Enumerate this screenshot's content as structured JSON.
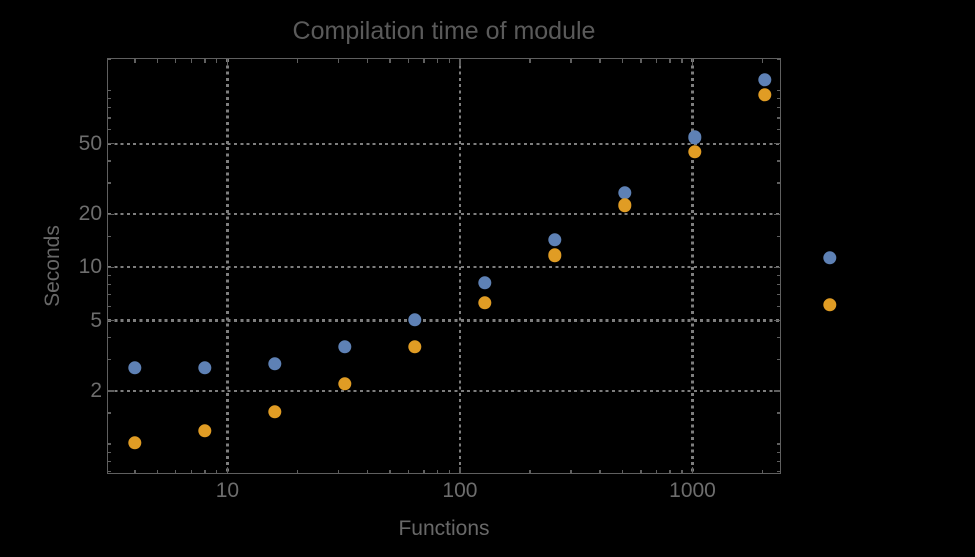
{
  "chart_data": {
    "type": "scatter",
    "title": "Compilation time of module",
    "xlabel": "Functions",
    "ylabel": "Seconds",
    "x_scale": "log",
    "y_scale": "log",
    "x_range": [
      3.05,
      2390
    ],
    "y_range": [
      0.68,
      151
    ],
    "grid": true,
    "grid_style": "dotted gray at major ticks",
    "x": [
      4,
      8,
      16,
      32,
      64,
      128,
      256,
      512,
      1024,
      2048
    ],
    "series": [
      {
        "name": "blue",
        "color": "#5e81b5",
        "values": [
          2.7,
          2.7,
          2.85,
          3.55,
          5.05,
          8.2,
          14.3,
          26.4,
          54.5,
          115
        ]
      },
      {
        "name": "orange",
        "color": "#e09c24",
        "values": [
          1.02,
          1.19,
          1.52,
          2.2,
          3.55,
          6.3,
          11.7,
          22.4,
          45.2,
          94.5
        ]
      }
    ],
    "x_ticks": {
      "major": [
        10,
        100,
        1000
      ],
      "labels": [
        "10",
        "100",
        "1000"
      ],
      "minor": [
        4,
        5,
        6,
        7,
        8,
        9,
        20,
        30,
        40,
        50,
        60,
        70,
        80,
        90,
        200,
        300,
        400,
        500,
        600,
        700,
        800,
        900,
        2000
      ]
    },
    "y_ticks": {
      "major": [
        2,
        5,
        10,
        20,
        50
      ],
      "labels": [
        "2",
        "5",
        "10",
        "20",
        "50"
      ],
      "minor": [
        0.7,
        0.8,
        0.9,
        1,
        1.5,
        3,
        4,
        6,
        7,
        8,
        9,
        15,
        30,
        40,
        60,
        70,
        80,
        90,
        100,
        150
      ]
    },
    "legend": {
      "position": "right-outside",
      "entries": [
        {
          "label": "",
          "color": "#5e81b5"
        },
        {
          "label": "",
          "color": "#e09c24"
        }
      ]
    }
  },
  "colors": {
    "background": "#000000",
    "frame": "#5f5f5f",
    "gridline": "#7e7e7e",
    "tick_label_text": "#6d6d6d",
    "axis_label_text": "#686868",
    "title_text": "#5a5a5a",
    "series_blue": "#5e81b5",
    "series_orange": "#e09c24"
  }
}
